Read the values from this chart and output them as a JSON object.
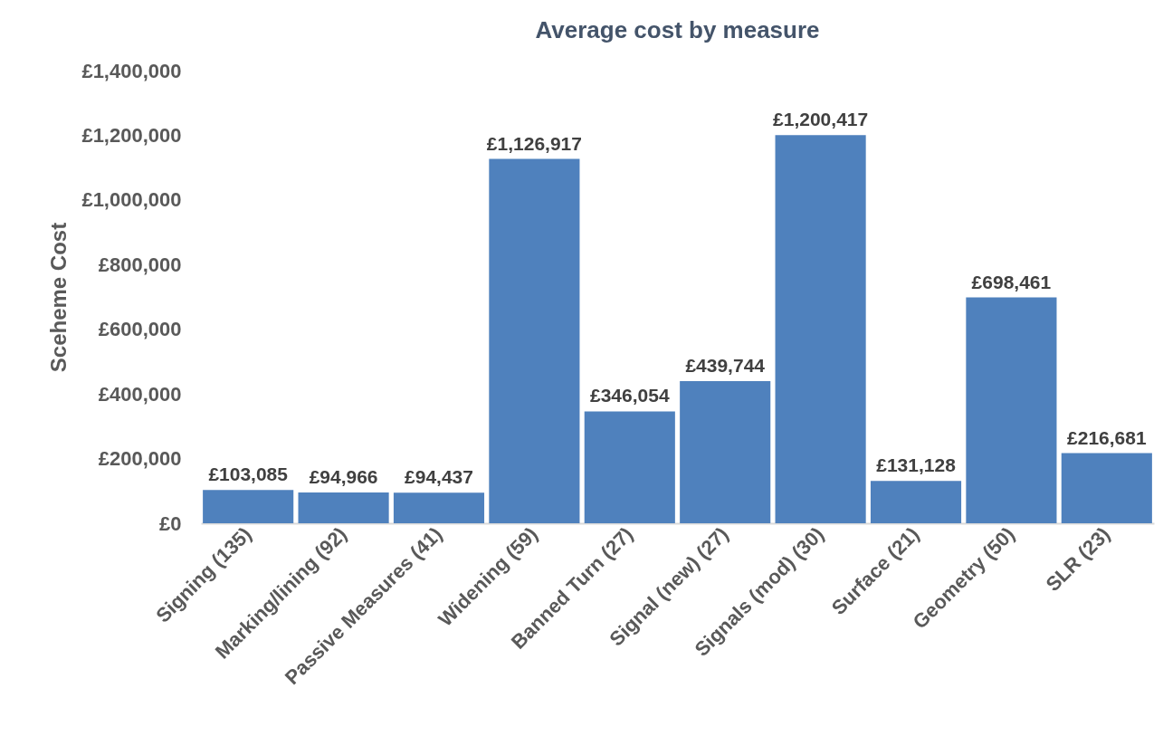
{
  "chart_data": {
    "type": "bar",
    "title": "Average cost by measure",
    "ylabel": "Sceheme Cost",
    "categories": [
      "Signing (135)",
      "Marking/lining (92)",
      "Passive Measures (41)",
      "Widening (59)",
      "Banned Turn (27)",
      "Signal (new) (27)",
      "Signals (mod) (30)",
      "Surface (21)",
      "Geometry (50)",
      "SLR (23)"
    ],
    "values": [
      103085,
      94966,
      94437,
      1126917,
      346054,
      439744,
      1200417,
      131128,
      698461,
      216681
    ],
    "value_labels": [
      "£103,085",
      "£94,966",
      "£94,437",
      "£1,126,917",
      "£346,054",
      "£439,744",
      "£1,200,417",
      "£131,128",
      "£698,461",
      "£216,681"
    ],
    "color": "#4f81bd",
    "ylim": [
      0,
      1400000
    ],
    "yticks": [
      {
        "value": 0,
        "label": "£0"
      },
      {
        "value": 200000,
        "label": "£200,000"
      },
      {
        "value": 400000,
        "label": "£400,000"
      },
      {
        "value": 600000,
        "label": "£600,000"
      },
      {
        "value": 800000,
        "label": "£800,000"
      },
      {
        "value": 1000000,
        "label": "£1,000,000"
      },
      {
        "value": 1200000,
        "label": "£1,200,000"
      },
      {
        "value": 1400000,
        "label": "£1,400,000"
      }
    ]
  }
}
